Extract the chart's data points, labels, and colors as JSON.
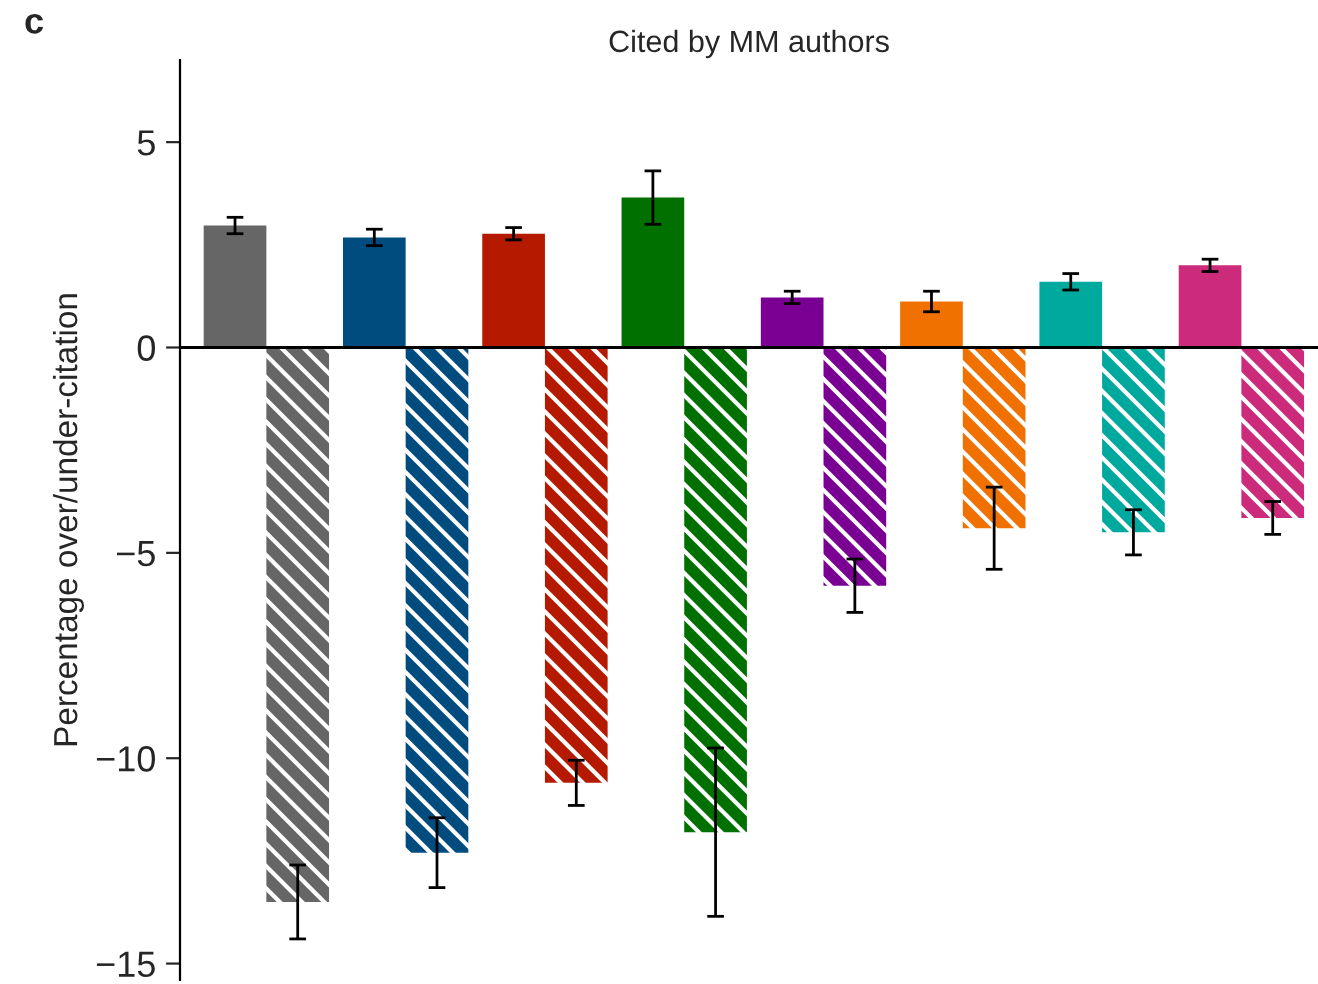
{
  "chart_data": {
    "type": "bar",
    "title": "Cited by MM authors",
    "ylabel": "Percentage over/under-citation",
    "annotations": [
      "c"
    ],
    "categories": [
      null,
      null,
      null,
      null,
      null,
      null,
      null,
      null
    ],
    "series": [
      {
        "colors": [
          "#666666",
          "#004c7f",
          "#b51a00",
          "#007000",
          "#7a0094",
          "#f07000",
          "#00a99d",
          "#cc2a7a"
        ],
        "values": [
          2.97,
          2.68,
          2.77,
          3.65,
          1.22,
          1.12,
          1.6,
          2.0
        ],
        "errors": [
          0.2,
          0.2,
          0.15,
          0.65,
          0.15,
          0.25,
          0.2,
          0.15
        ]
      },
      {
        "colors": [
          "#666666",
          "#004c7f",
          "#b51a00",
          "#007000",
          "#7a0094",
          "#f07000",
          "#00a99d",
          "#cc2a7a"
        ],
        "values": [
          -13.5,
          -12.3,
          -10.6,
          -11.8,
          -5.8,
          -4.4,
          -4.5,
          -4.15
        ],
        "errors": [
          0.9,
          0.85,
          0.55,
          2.05,
          0.65,
          1.0,
          0.55,
          0.4
        ]
      }
    ],
    "ylim": [
      -15.4,
      7
    ],
    "yticks": [
      {
        "value": 5,
        "label": "5"
      },
      {
        "value": 0,
        "label": "0"
      },
      {
        "value": -5,
        "label": "−5"
      },
      {
        "value": -10,
        "label": "−10"
      },
      {
        "value": -15,
        "label": "−15"
      }
    ],
    "ref_lines": [
      {
        "axis": "y",
        "value": 0,
        "color": "#000000"
      }
    ],
    "grid": false,
    "legend": false
  }
}
